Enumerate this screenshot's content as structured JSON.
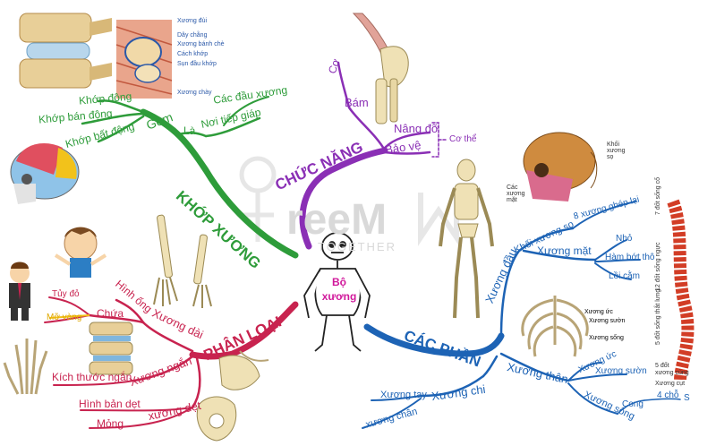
{
  "watermark": {
    "brand": "reeM",
    "sub": "TOGETHER"
  },
  "center": {
    "title": "Bộ xương"
  },
  "branches": {
    "khop_xuong": {
      "title": "KHỚP XƯƠNG",
      "color": "#2e9c3a",
      "gom": "Gồm",
      "la": "Là",
      "gom_items": [
        "Khớp động",
        "Khớp bán động",
        "Khớp bất động"
      ],
      "la_item": "Nơi tiếp giáp",
      "la_sub": "Các đầu xương",
      "image_labels": [
        "Xương đùi",
        "Dây chằng",
        "Xương bánh chè",
        "Cách khớp",
        "Sụn đầu khớp",
        "Xương chày"
      ]
    },
    "chuc_nang": {
      "title": "CHỨC NĂNG",
      "color": "#8a2fb5",
      "items": [
        "Cơ",
        "Bám",
        "Nâng đỡ",
        "Bảo vệ"
      ],
      "extra": "Cơ thể"
    },
    "phan_loai": {
      "title": "PHÂN LOẠI",
      "color": "#c8234f",
      "xuong_dai": "Xương dài",
      "hinh_ong": "Hình ống",
      "chua": "Chứa",
      "tuy_do": "Tủy đỏ",
      "mo_vang": "Mỡ vàng",
      "xuong_ngan": "Xương ngắn",
      "kich_thuoc_ngan": "Kích thước ngắn",
      "xuong_det": "xương dẹt",
      "hinh_ban_det": "Hình bản dẹt",
      "mong": "Mỏng"
    },
    "cac_phan": {
      "title": "CÁC PHẦN",
      "color": "#1d63b5",
      "xuong_dau": "Xương đầu",
      "khoi_xuong_so": "Khối xương sọ",
      "tam_xuong": "8 xương ghép lại",
      "xuong_mat": "Xương mặt",
      "mat_items": [
        "Nhỏ",
        "Hàm bớt thô",
        "Lồi cằm"
      ],
      "xuong_than": "Xương thân",
      "xuong_uc": "Xương ức",
      "xuong_suon": "Xương sườn",
      "xuong_song": "Xương sống",
      "cong": "Cong",
      "bon_cho": "4 chỗ",
      "s": "S",
      "xuong_chi": "Xương chi",
      "xuong_tay": "Xương tay",
      "xuong_chan": "xương chân",
      "skull_labels": [
        "Khối xương sọ",
        "Các xương mặt"
      ],
      "rib_labels": [
        "Xương ức",
        "Xương sườn",
        "Xương sống"
      ],
      "spine_labels": [
        "7 đốt sống cổ",
        "12 đốt sống ngực",
        "5 đốt sống thắt lưng",
        "5 đốt sống cùng",
        "4 đốt xương cụt"
      ],
      "spine_bottom": [
        "5 đốt",
        "xương cùng",
        "Xương cụt"
      ]
    }
  }
}
